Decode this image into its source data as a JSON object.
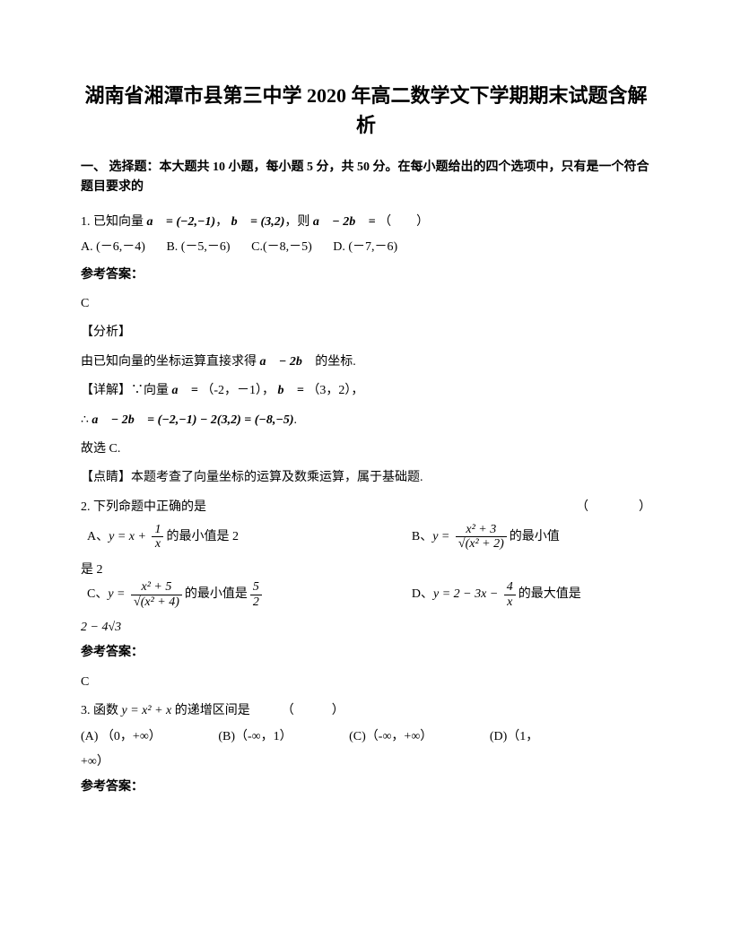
{
  "title": "湖南省湘潭市县第三中学 2020 年高二数学文下学期期末试题含解析",
  "section_header": "一、 选择题：本大题共 10 小题，每小题 5 分，共 50 分。在每小题给出的四个选项中，只有是一个符合题目要求的",
  "q1": {
    "stem_prefix": "1. 已知向量",
    "vec_a": "a⃗ = (−2,−1)",
    "sep1": "，",
    "vec_b": "b⃗ = (3,2)",
    "sep2": "，则",
    "expr": "a⃗ − 2b⃗ =",
    "blank": "（　　）",
    "options": {
      "A": "A. (－6,－4)",
      "B": "B. (－5,－6)",
      "C": "C.(－8,－5)",
      "D": "D. (－7,－6)"
    },
    "answer_label": "参考答案：",
    "answer": "C",
    "analysis_label": "【分析】",
    "analysis_text_prefix": "由已知向量的坐标运算直接求得",
    "analysis_expr": "a⃗ − 2b⃗",
    "analysis_text_suffix": " 的坐标.",
    "detail_label": "【详解】∵向量",
    "detail_a": "a⃗ =",
    "detail_a_val": "（-2，－1），",
    "detail_b": "b⃗ =",
    "detail_b_val": "（3，2），",
    "detail_therefore": "∴",
    "detail_result": "a⃗ − 2b⃗ = (−2,−1) − 2(3,2) = (−8,−5)",
    "detail_period": ".",
    "conclusion": "故选 C.",
    "comment": "【点睛】本题考查了向量坐标的运算及数乘运算，属于基础题."
  },
  "q2": {
    "stem": "2. 下列命题中正确的是",
    "blank": "（　　　　）",
    "optA_prefix": "A、",
    "optA_formula_lhs": "y = x +",
    "optA_frac_num": "1",
    "optA_frac_den": "x",
    "optA_suffix": "的最小值是 2",
    "optB_prefix": "B、",
    "optB_frac_num": "x² + 3",
    "optB_frac_den": "√(x² + 2)",
    "optB_suffix": "的最小值是 2",
    "optB_cont": "是 2",
    "optC_prefix": "C、",
    "optC_frac_num": "x² + 5",
    "optC_frac_den": "√(x² + 4)",
    "optC_suffix": "的最小值是",
    "optC_val_num": "5",
    "optC_val_den": "2",
    "optD_prefix": "D、",
    "optD_formula": "y = 2 − 3x −",
    "optD_frac_num": "4",
    "optD_frac_den": "x",
    "optD_suffix": "的最大值是",
    "optD_cont": "2 − 4√3",
    "answer_label": "参考答案：",
    "answer": "C"
  },
  "q3": {
    "stem_prefix": "3. 函数",
    "formula": "y = x² + x",
    "stem_suffix": "的递增区间是　　　（　　　）",
    "options": {
      "A": "(A) （0，+∞）",
      "B": "(B)（-∞，1）",
      "C": "(C)（-∞，+∞）",
      "D": "(D)（1，"
    },
    "D_cont": "+∞）",
    "answer_label": "参考答案："
  }
}
